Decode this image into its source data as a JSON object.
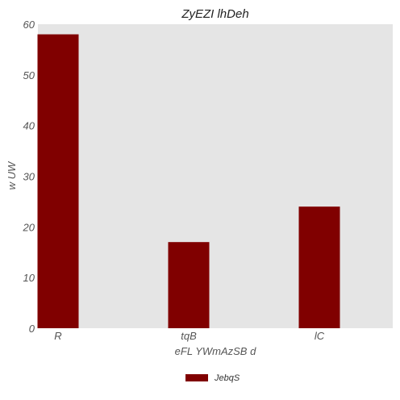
{
  "chart_data": {
    "type": "bar",
    "title": "ZyEZI lhDeh",
    "xlabel": "eFL YWmAzSB d",
    "ylabel": "w UW",
    "categories": [
      "R",
      "tqB",
      "lC"
    ],
    "series": [
      {
        "name": "JebqS",
        "values": [
          58,
          17,
          24
        ],
        "color": "#800000"
      }
    ],
    "ylim": [
      0,
      60
    ],
    "yticks": [
      0,
      10,
      20,
      30,
      40,
      50,
      60
    ],
    "grid": false,
    "legend": "bottom-center",
    "background": "#e5e5e5"
  }
}
